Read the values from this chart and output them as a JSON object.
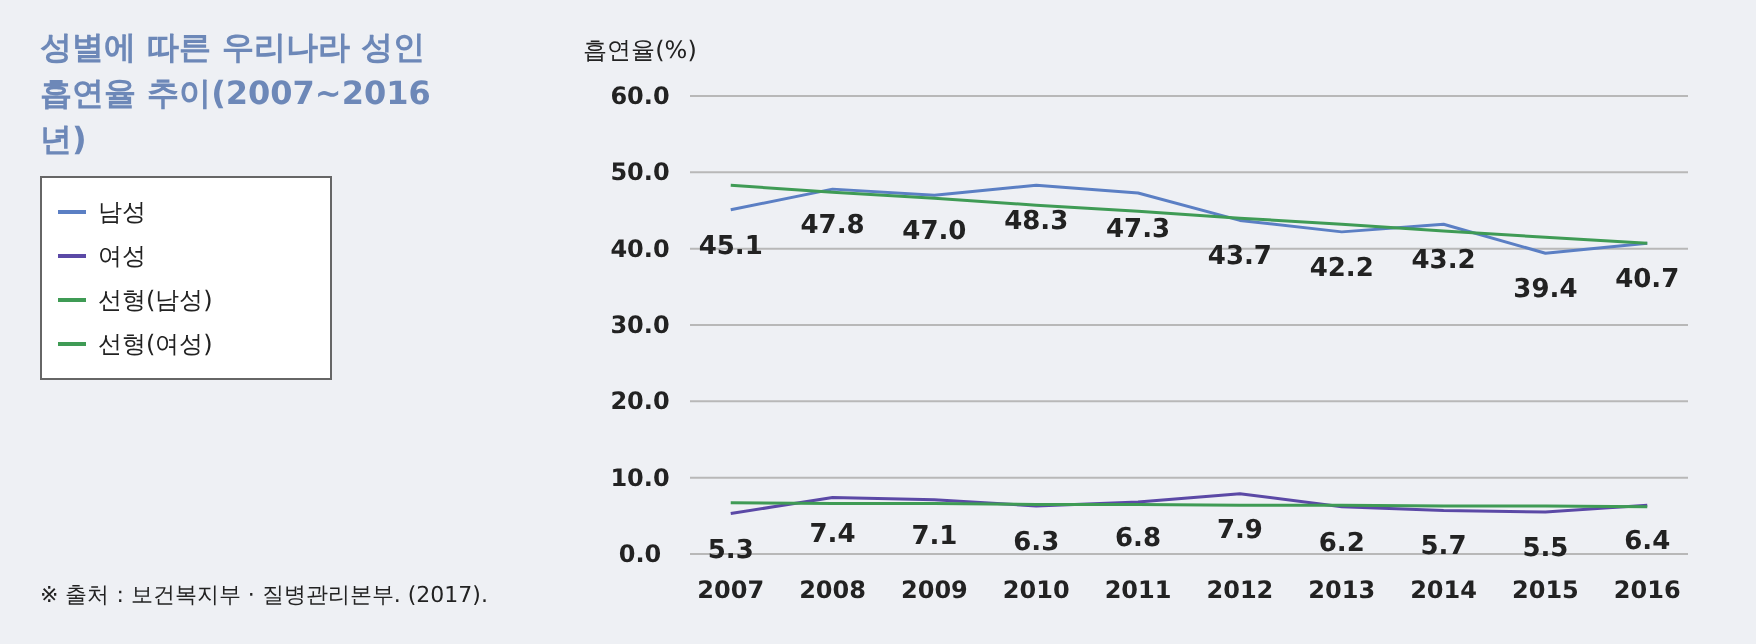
{
  "chart_data": {
    "type": "line",
    "title": "성별에 따른 우리나라 성인 흡연율 추이(2007~2016년)",
    "ylabel": "흡연율(%)",
    "x": [
      2007,
      2008,
      2009,
      2010,
      2011,
      2012,
      2013,
      2014,
      2015,
      2016
    ],
    "xlim": [
      2006.6,
      2016.4
    ],
    "xticks": [
      2007,
      2008,
      2009,
      2010,
      2011,
      2012,
      2013,
      2014,
      2015,
      2016
    ],
    "ylim": [
      0,
      60
    ],
    "yticks": [
      {
        "value": 0,
        "label": "0.0"
      },
      {
        "value": 10,
        "label": "10.0"
      },
      {
        "value": 20,
        "label": "20.0"
      },
      {
        "value": 30,
        "label": "30.0"
      },
      {
        "value": 40,
        "label": "40.0"
      },
      {
        "value": 50,
        "label": "50.0"
      },
      {
        "value": 60,
        "label": "60.0"
      }
    ],
    "grid": "y",
    "legend": "left",
    "marker": "none",
    "series": [
      {
        "name": "남성",
        "color": "#5b7fc4",
        "values": [
          45.1,
          47.8,
          47.0,
          48.3,
          47.3,
          43.7,
          42.2,
          43.2,
          39.4,
          40.7
        ],
        "value_labels": [
          "45.1",
          "47.8",
          "47.0",
          "48.3",
          "47.3",
          "43.7",
          "42.2",
          "43.2",
          "39.4",
          "40.7"
        ]
      },
      {
        "name": "여성",
        "color": "#5b49a6",
        "values": [
          5.3,
          7.4,
          7.1,
          6.3,
          6.8,
          7.9,
          6.2,
          5.7,
          5.5,
          6.4
        ],
        "value_labels": [
          "5.3",
          "7.4",
          "7.1",
          "6.3",
          "6.8",
          "7.9",
          "6.2",
          "5.7",
          "5.5",
          "6.4"
        ]
      },
      {
        "name": "선형(남성)",
        "color": "#3f9b55",
        "values": [
          48.3,
          47.4,
          46.6,
          45.7,
          44.9,
          44.0,
          43.2,
          42.3,
          41.5,
          40.7
        ]
      },
      {
        "name": "선형(여성)",
        "color": "#3f9b55",
        "values": [
          6.7,
          6.6,
          6.6,
          6.5,
          6.5,
          6.4,
          6.4,
          6.3,
          6.3,
          6.2
        ]
      }
    ],
    "annotations": [
      "※ 출처 : 보건복지부 · 질병관리본부. (2017)."
    ]
  }
}
